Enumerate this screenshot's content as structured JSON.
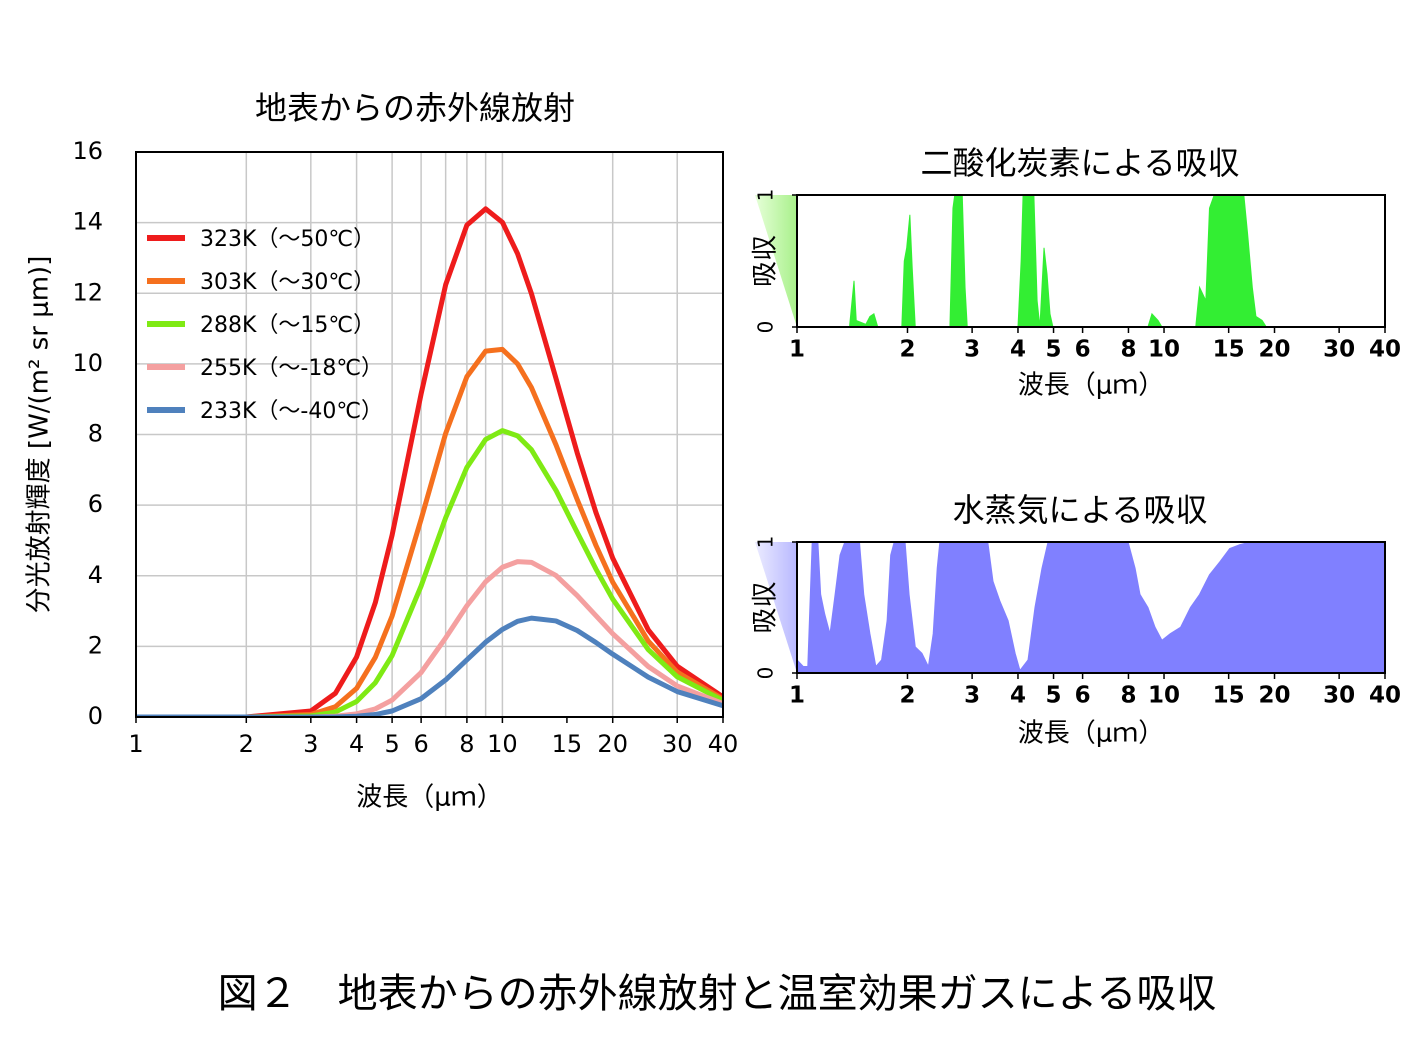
{
  "caption": "図２　地表からの赤外線放射と温室効果ガスによる吸収",
  "chart_data": [
    {
      "type": "line",
      "title": "地表からの赤外線放射",
      "x_label": "波長（μｍ）",
      "y_label": "分光放射輝度 [W/(m² sr μm)]",
      "xscale": "log",
      "xlim": [
        1,
        40
      ],
      "xticks": [
        1,
        2,
        3,
        4,
        5,
        6,
        8,
        10,
        15,
        20,
        30,
        40
      ],
      "xgrid": [
        1,
        2,
        3,
        4,
        5,
        6,
        7,
        8,
        9,
        10,
        20,
        30,
        40
      ],
      "ylim": [
        0,
        16
      ],
      "yticks": [
        0,
        2,
        4,
        6,
        8,
        10,
        12,
        14,
        16
      ],
      "grid": true,
      "legend": "upper left",
      "x": [
        1,
        2,
        3,
        3.5,
        4,
        4.5,
        5,
        6,
        7,
        8,
        9,
        10,
        11,
        12,
        14,
        16,
        18,
        20,
        25,
        30,
        40
      ],
      "series": [
        {
          "name": "323K（～50℃）",
          "color": "#ee1c1c",
          "values": [
            0,
            0,
            0.17,
            0.67,
            1.7,
            3.24,
            5.15,
            9.15,
            12.24,
            13.93,
            14.39,
            14.01,
            13.12,
            11.99,
            9.59,
            7.48,
            5.79,
            4.5,
            2.47,
            1.44,
            0.57
          ]
        },
        {
          "name": "303K（～30℃）",
          "color": "#f5701e",
          "values": [
            0,
            0,
            0.07,
            0.29,
            0.81,
            1.69,
            2.86,
            5.6,
            8.03,
            9.64,
            10.36,
            10.41,
            10.0,
            9.33,
            7.71,
            6.16,
            4.86,
            3.82,
            2.15,
            1.27,
            0.51
          ]
        },
        {
          "name": "288K（～15℃）",
          "color": "#7fea14",
          "values": [
            0,
            0,
            0.03,
            0.14,
            0.44,
            0.97,
            1.74,
            3.71,
            5.64,
            7.07,
            7.86,
            8.11,
            7.96,
            7.57,
            6.42,
            5.23,
            4.19,
            3.34,
            1.91,
            1.14,
            0.47
          ]
        },
        {
          "name": "255K（～-18℃）",
          "color": "#f4a0a0",
          "values": [
            0,
            0,
            0,
            0.02,
            0.09,
            0.23,
            0.48,
            1.26,
            2.24,
            3.15,
            3.83,
            4.24,
            4.4,
            4.38,
            4.01,
            3.44,
            2.87,
            2.36,
            1.43,
            0.88,
            0.38
          ]
        },
        {
          "name": "233K（～-40℃）",
          "color": "#4f81bd",
          "values": [
            0,
            0,
            0,
            0,
            0.02,
            0.07,
            0.17,
            0.52,
            1.05,
            1.62,
            2.12,
            2.48,
            2.71,
            2.8,
            2.72,
            2.45,
            2.11,
            1.78,
            1.13,
            0.72,
            0.32
          ]
        }
      ]
    },
    {
      "type": "area",
      "title": "二酸化炭素による吸収",
      "x_label": "波長（μｍ）",
      "y_label": "吸収",
      "color": "#33ee33",
      "xscale": "log",
      "xlim": [
        1,
        40
      ],
      "xticks": [
        1,
        2,
        3,
        4,
        5,
        6,
        8,
        10,
        15,
        20,
        30,
        40
      ],
      "ylim": [
        0,
        1
      ],
      "yticks": [
        0,
        1
      ],
      "x": [
        1,
        1.39,
        1.43,
        1.45,
        1.54,
        1.58,
        1.62,
        1.66,
        1.93,
        1.96,
        1.99,
        2.03,
        2.06,
        2.1,
        2.61,
        2.66,
        2.69,
        2.82,
        2.87,
        2.91,
        4.0,
        4.08,
        4.13,
        4.42,
        4.51,
        4.59,
        4.71,
        4.8,
        4.89,
        4.98,
        9.04,
        9.27,
        9.63,
        9.87,
        12.2,
        12.5,
        13.0,
        13.3,
        13.7,
        16.5,
        16.9,
        17.4,
        17.8,
        18.5,
        19.0,
        40
      ],
      "values": [
        0,
        0,
        0.35,
        0.05,
        0.02,
        0.08,
        0.1,
        0,
        0,
        0.5,
        0.6,
        0.85,
        0.45,
        0,
        0,
        0.9,
        1,
        1,
        0.3,
        0,
        0,
        0.5,
        1,
        1,
        0.2,
        0,
        0.6,
        0.4,
        0.1,
        0,
        0,
        0.1,
        0.05,
        0,
        0,
        0.3,
        0.2,
        0.9,
        1,
        1,
        0.7,
        0.3,
        0.08,
        0.05,
        0,
        0
      ]
    },
    {
      "type": "area",
      "title": "水蒸気による吸収",
      "x_label": "波長（μｍ）",
      "y_label": "吸収",
      "color": "#8080ff",
      "xscale": "log",
      "xlim": [
        1,
        40
      ],
      "xticks": [
        1,
        2,
        3,
        4,
        5,
        6,
        8,
        10,
        15,
        20,
        30,
        40
      ],
      "ylim": [
        0,
        1
      ],
      "yticks": [
        0,
        1
      ],
      "x": [
        1,
        1.04,
        1.07,
        1.1,
        1.14,
        1.16,
        1.19,
        1.23,
        1.27,
        1.31,
        1.35,
        1.48,
        1.52,
        1.58,
        1.64,
        1.7,
        1.76,
        1.8,
        1.84,
        1.97,
        2.02,
        2.1,
        2.19,
        2.28,
        2.35,
        2.41,
        2.45,
        3.31,
        3.42,
        3.57,
        3.76,
        3.93,
        4.05,
        4.26,
        4.45,
        4.65,
        4.83,
        7.98,
        8.34,
        8.6,
        9.04,
        9.45,
        9.87,
        10.4,
        11.1,
        11.8,
        12.5,
        13.3,
        14.2,
        15.1,
        16.1,
        17.2,
        40
      ],
      "values": [
        0.1,
        0.05,
        0.05,
        1,
        1,
        0.6,
        0.45,
        0.3,
        0.6,
        0.9,
        1,
        1,
        0.6,
        0.3,
        0.05,
        0.1,
        0.4,
        0.9,
        1,
        1,
        0.6,
        0.2,
        0.15,
        0.05,
        0.3,
        0.8,
        1,
        1,
        0.7,
        0.55,
        0.4,
        0.15,
        0.02,
        0.1,
        0.5,
        0.8,
        1,
        1,
        0.8,
        0.6,
        0.5,
        0.35,
        0.25,
        0.3,
        0.35,
        0.5,
        0.6,
        0.75,
        0.85,
        0.95,
        0.98,
        1,
        1
      ]
    }
  ]
}
